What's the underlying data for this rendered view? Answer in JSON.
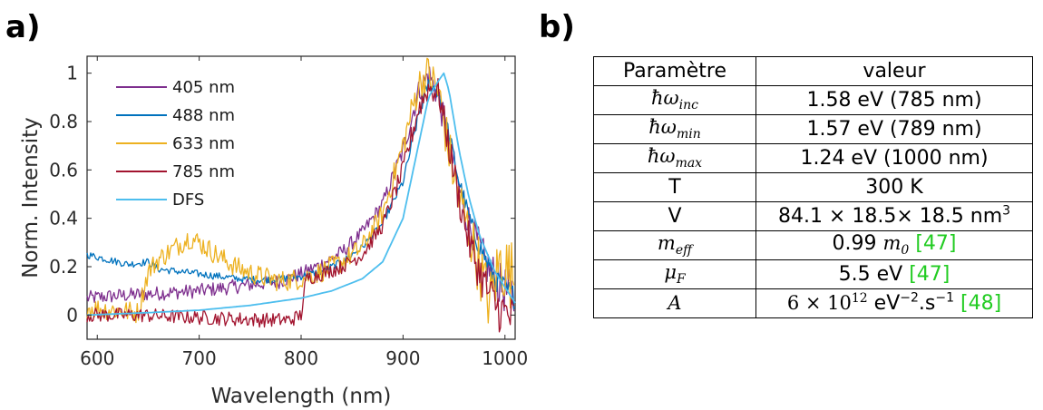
{
  "panels": {
    "a_label": "a)",
    "b_label": "b)"
  },
  "chart_data": {
    "type": "line",
    "xlabel": "Wavelength (nm)",
    "ylabel": "Norm. Intensity",
    "xlim": [
      590,
      1010
    ],
    "ylim": [
      -0.1,
      1.07
    ],
    "xticks": [
      600,
      700,
      800,
      900,
      1000
    ],
    "yticks": [
      0,
      0.2,
      0.4,
      0.6,
      0.8,
      1
    ],
    "ytick_labels": [
      "0",
      "0.2",
      "0.4",
      "0.6",
      "0.8",
      "1"
    ],
    "legend_position": "top-left",
    "series": [
      {
        "name": "405 nm",
        "color": "#7e2f8e",
        "noise": 0.03,
        "x": [
          590,
          620,
          660,
          700,
          740,
          780,
          800,
          820,
          840,
          860,
          880,
          900,
          915,
          925,
          935,
          945,
          955,
          965,
          980,
          995,
          1010
        ],
        "y": [
          0.07,
          0.08,
          0.09,
          0.1,
          0.12,
          0.14,
          0.17,
          0.21,
          0.26,
          0.34,
          0.46,
          0.68,
          0.92,
          1.0,
          0.9,
          0.7,
          0.52,
          0.38,
          0.22,
          0.12,
          0.07
        ]
      },
      {
        "name": "488 nm",
        "color": "#0072bd",
        "noise": 0.015,
        "x": [
          590,
          610,
          630,
          650,
          660,
          680,
          700,
          720,
          740,
          760,
          780,
          800,
          820,
          840,
          860,
          880,
          900,
          915,
          925,
          935,
          945,
          955,
          970,
          990,
          1010
        ],
        "y": [
          0.25,
          0.23,
          0.21,
          0.22,
          0.19,
          0.18,
          0.17,
          0.16,
          0.15,
          0.145,
          0.15,
          0.16,
          0.18,
          0.22,
          0.28,
          0.38,
          0.55,
          0.82,
          0.96,
          0.92,
          0.75,
          0.55,
          0.33,
          0.15,
          0.07
        ]
      },
      {
        "name": "633 nm",
        "color": "#edb120",
        "noise": 0.045,
        "x": [
          590,
          620,
          640,
          650,
          660,
          680,
          690,
          700,
          720,
          740,
          760,
          780,
          800,
          820,
          840,
          860,
          880,
          900,
          915,
          925,
          935,
          945,
          955,
          965,
          975,
          985,
          995,
          1010
        ],
        "y": [
          0.03,
          0.02,
          0.01,
          0.18,
          0.23,
          0.29,
          0.32,
          0.3,
          0.24,
          0.19,
          0.16,
          0.14,
          0.15,
          0.18,
          0.22,
          0.28,
          0.42,
          0.7,
          0.95,
          1.0,
          0.92,
          0.68,
          0.48,
          0.34,
          0.2,
          0.05,
          0.22,
          0.15
        ]
      },
      {
        "name": "785 nm",
        "color": "#a2142f",
        "noise": 0.03,
        "x": [
          590,
          640,
          700,
          760,
          790,
          800,
          805,
          820,
          840,
          860,
          880,
          900,
          915,
          925,
          935,
          945,
          955,
          965,
          975,
          985,
          995,
          1010
        ],
        "y": [
          0.0,
          0.0,
          -0.01,
          -0.02,
          -0.02,
          0.0,
          0.15,
          0.17,
          0.2,
          0.25,
          0.37,
          0.6,
          0.85,
          0.94,
          0.92,
          0.7,
          0.48,
          0.3,
          0.18,
          0.08,
          0.02,
          -0.02
        ]
      },
      {
        "name": "DFS",
        "color": "#4dbeee",
        "noise": 0.0,
        "x": [
          590,
          650,
          700,
          750,
          800,
          830,
          860,
          880,
          900,
          915,
          925,
          935,
          940,
          945,
          955,
          965,
          975,
          990,
          1010
        ],
        "y": [
          0.0,
          0.01,
          0.02,
          0.04,
          0.07,
          0.1,
          0.15,
          0.22,
          0.4,
          0.7,
          0.9,
          0.97,
          1.0,
          0.93,
          0.68,
          0.48,
          0.33,
          0.18,
          0.05
        ]
      }
    ]
  },
  "table": {
    "header": {
      "param": "Paramètre",
      "value": "valeur"
    },
    "rows": [
      {
        "param": "ħω",
        "param_sub": "inc",
        "value": "1.58 eV (785 nm)"
      },
      {
        "param": "ħω",
        "param_sub": "min",
        "value": "1.57 eV (789 nm)"
      },
      {
        "param": "ħω",
        "param_sub": "max",
        "value": "1.24 eV (1000 nm)"
      },
      {
        "param": "T",
        "value": "300 K"
      },
      {
        "param": "V",
        "value_main": "84.1 × 18.5× 18.5 nm",
        "value_sup": "3"
      },
      {
        "param": "m",
        "param_sub": "eff",
        "value_main": "0.99 ",
        "value_math": "m",
        "value_math_sub": "0",
        "value_ref": "[47]"
      },
      {
        "param": "μ",
        "param_sub": "F",
        "value_main": "5.5 eV ",
        "value_ref": "[47]"
      },
      {
        "param": "A",
        "value_math_pre": "6 × 10",
        "value_math_sup": "12",
        "value_unit": " eV",
        "value_unit_sup": "−2",
        "value_unit2": ".s",
        "value_unit2_sup": "−1",
        "value_ref": "[48]"
      }
    ]
  }
}
